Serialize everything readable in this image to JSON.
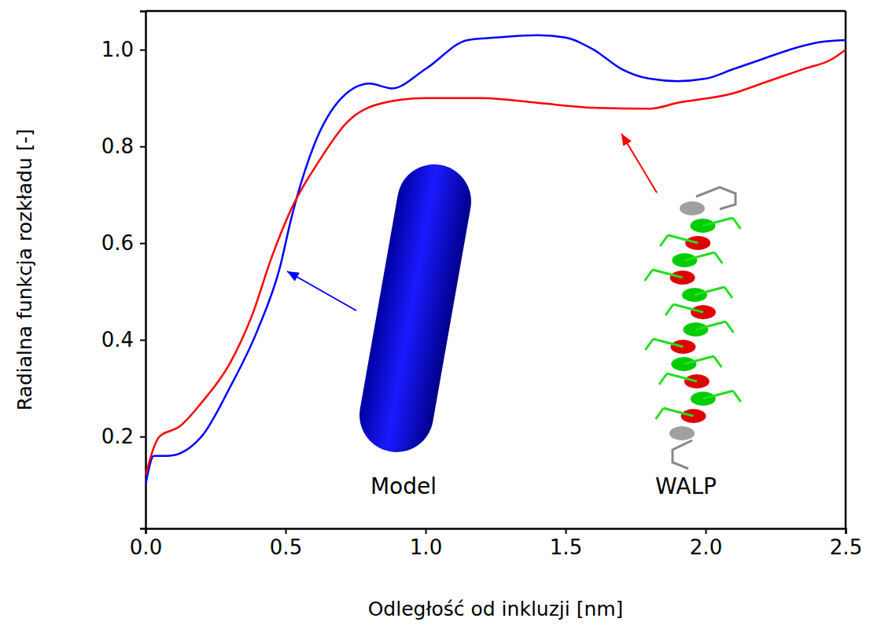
{
  "chart_data": {
    "type": "line",
    "x_label": "Odległość od inkluzji [nm]",
    "y_label": "Radialna funkcja rozkładu [-]",
    "xlim": [
      0,
      2.5
    ],
    "ylim": [
      0.01,
      1.08
    ],
    "xticks": [
      {
        "value": 0,
        "label": "0.0"
      },
      0.5,
      {
        "value": 1,
        "label": "1.0"
      },
      1.5,
      {
        "value": 2,
        "label": "2.0"
      },
      2.5
    ],
    "yticks": [
      0.2,
      0.4,
      0.6,
      0.8,
      {
        "value": 1,
        "label": "1.0"
      }
    ],
    "grid": false,
    "series": [
      {
        "name": "Model",
        "color": "#0000ff",
        "x": [
          0,
          0.03,
          0.08,
          0.2,
          0.3,
          0.4,
          0.48,
          0.52,
          0.6,
          0.7,
          0.8,
          0.88,
          1.0,
          1.15,
          1.25,
          1.4,
          1.5,
          1.6,
          1.7,
          1.8,
          1.9,
          2.0,
          2.1,
          2.2,
          2.3,
          2.4,
          2.5
        ],
        "values": [
          0.1,
          0.16,
          0.16,
          0.2,
          0.3,
          0.42,
          0.55,
          0.65,
          0.8,
          0.9,
          0.93,
          0.92,
          0.96,
          1.02,
          1.025,
          1.03,
          1.025,
          1.0,
          0.96,
          0.94,
          0.935,
          0.94,
          0.96,
          0.98,
          1.0,
          1.015,
          1.02
        ]
      },
      {
        "name": "WALP",
        "color": "#ff0000",
        "x": [
          0,
          0.05,
          0.12,
          0.2,
          0.3,
          0.38,
          0.45,
          0.52,
          0.62,
          0.72,
          0.85,
          1.0,
          1.2,
          1.4,
          1.6,
          1.8,
          1.9,
          2.1,
          2.2,
          2.35,
          2.45,
          2.5
        ],
        "values": [
          0.12,
          0.2,
          0.22,
          0.27,
          0.35,
          0.45,
          0.57,
          0.67,
          0.77,
          0.85,
          0.89,
          0.9,
          0.9,
          0.89,
          0.88,
          0.878,
          0.89,
          0.91,
          0.93,
          0.96,
          0.98,
          1.0
        ]
      }
    ]
  }
}
